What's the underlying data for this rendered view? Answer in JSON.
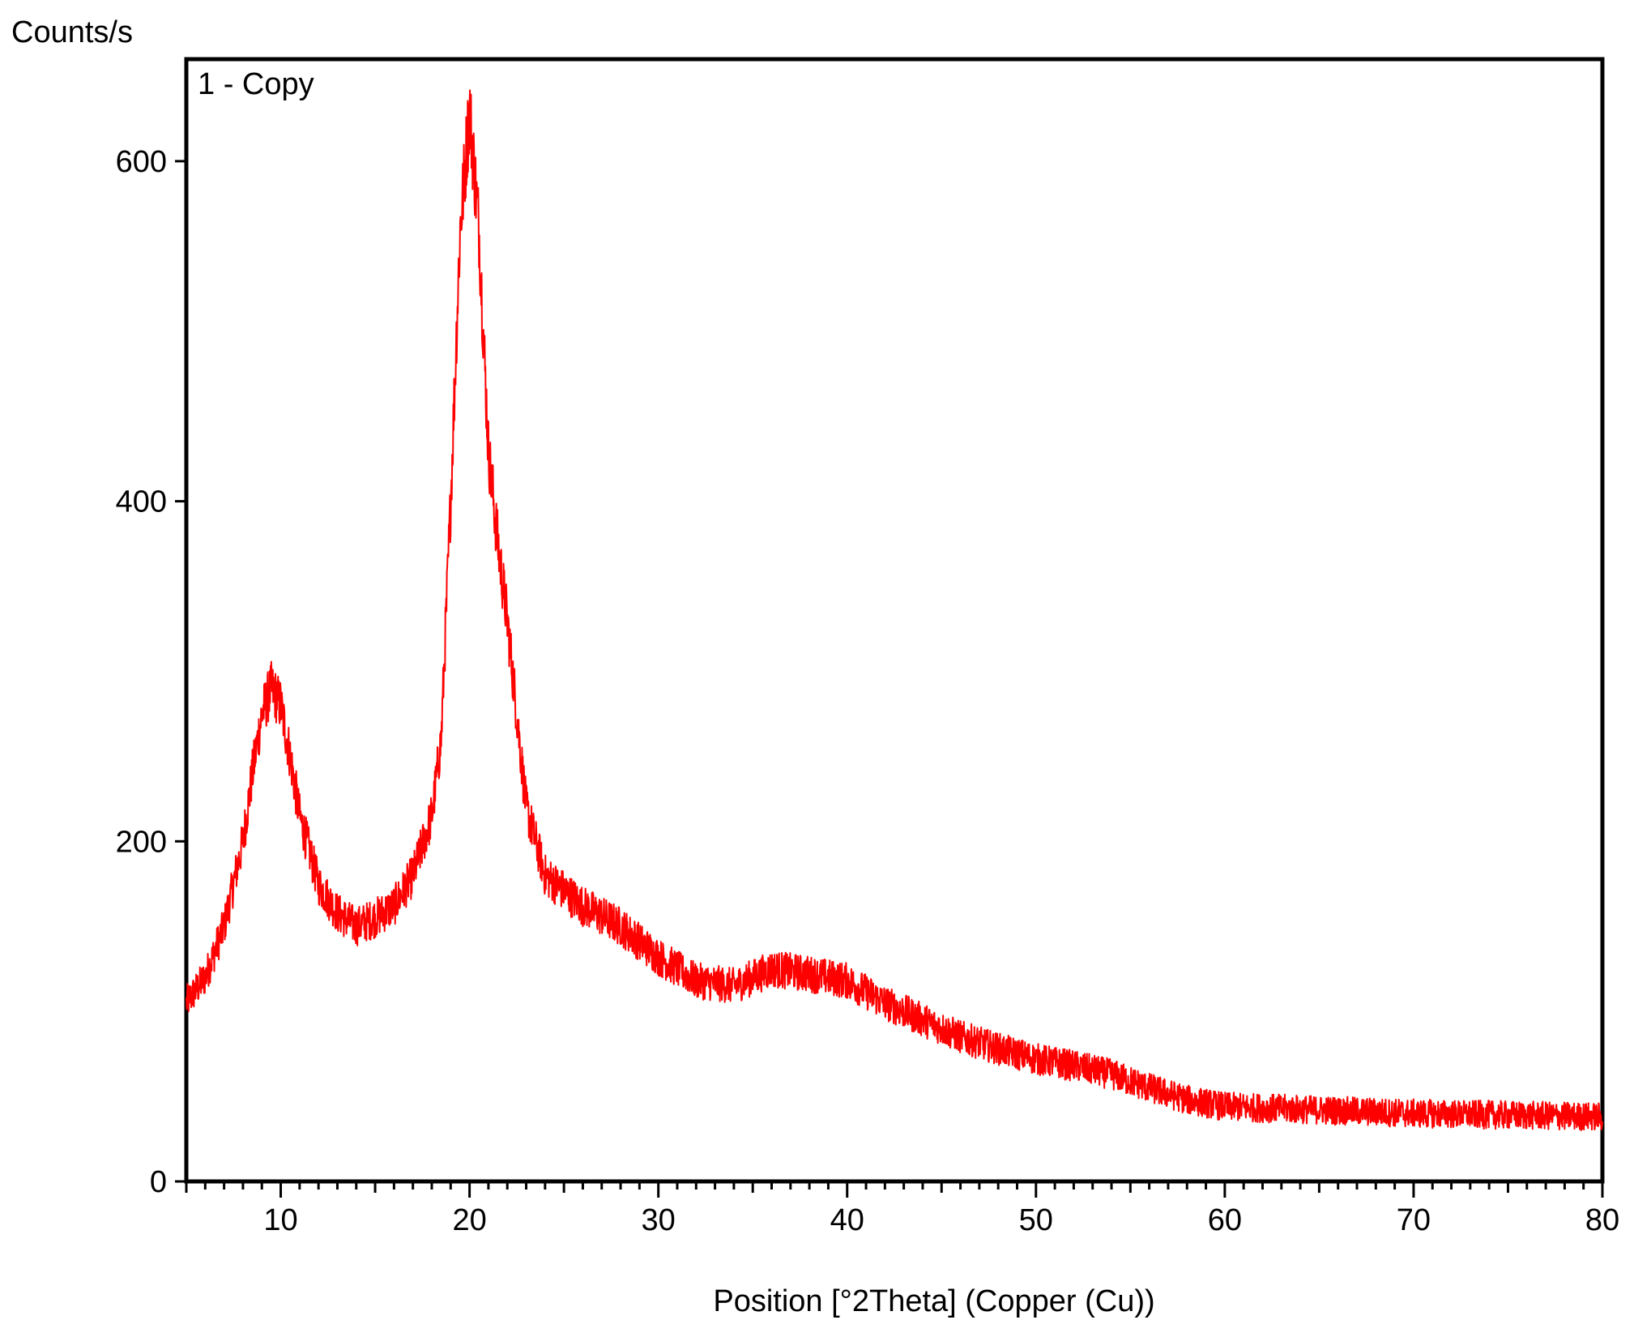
{
  "chart_data": {
    "type": "line",
    "title": "",
    "ylabel": "Counts/s",
    "xlabel": "Position [°2Theta] (Copper (Cu))",
    "legend_label": "1 - Copy",
    "legend_position": "top-left",
    "grid": false,
    "xlim": [
      5,
      80
    ],
    "ylim": [
      0,
      660
    ],
    "x_ticks": [
      10,
      20,
      30,
      40,
      50,
      60,
      70,
      80
    ],
    "x_tick_labels": [
      "10",
      "20",
      "30",
      "40",
      "50",
      "60",
      "70",
      "80"
    ],
    "y_ticks": [
      0,
      200,
      400,
      600
    ],
    "y_tick_labels": [
      "0",
      "200",
      "400",
      "600"
    ],
    "series": [
      {
        "name": "1 - Copy",
        "color": "#ff0000",
        "noise": 12,
        "x": [
          5,
          6,
          7,
          8,
          8.5,
          9,
          9.5,
          10,
          10.5,
          11,
          12,
          13,
          14,
          15,
          16,
          17,
          18,
          18.5,
          19,
          19.5,
          20,
          20.5,
          21,
          21.5,
          22,
          23,
          24,
          26,
          28,
          30,
          32,
          34,
          36,
          38,
          40,
          42,
          44,
          46,
          48,
          50,
          52,
          54,
          56,
          58,
          60,
          65,
          70,
          75,
          80
        ],
        "y": [
          105,
          120,
          150,
          200,
          240,
          275,
          290,
          280,
          250,
          215,
          175,
          158,
          150,
          155,
          162,
          180,
          215,
          260,
          400,
          560,
          630,
          560,
          430,
          375,
          330,
          220,
          180,
          162,
          150,
          132,
          118,
          115,
          125,
          122,
          118,
          105,
          95,
          85,
          78,
          72,
          68,
          63,
          55,
          48,
          44,
          42,
          40,
          39,
          38
        ]
      }
    ]
  }
}
